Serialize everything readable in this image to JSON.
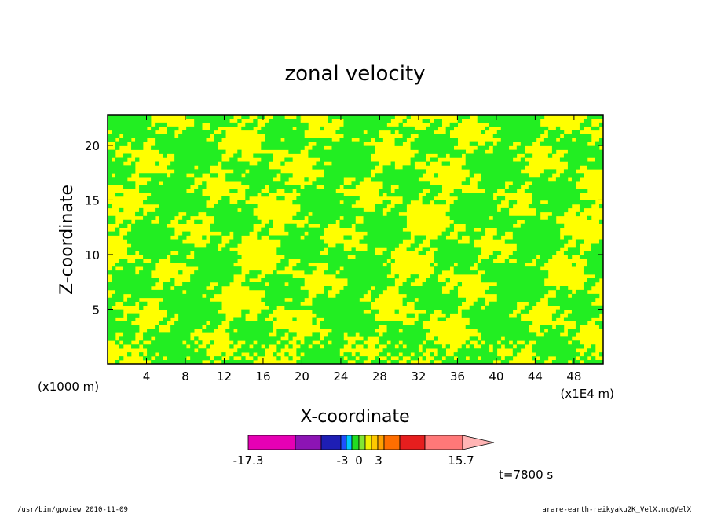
{
  "chart_data": {
    "type": "heatmap",
    "title": "zonal velocity",
    "xlabel": "X-coordinate",
    "ylabel": "Z-coordinate",
    "x_unit_left": "(x1000 m)",
    "x_unit_right": "(x1E4 m)",
    "xlim": [
      0,
      51
    ],
    "ylim": [
      0,
      22.8
    ],
    "x_ticks": [
      "4",
      "8",
      "12",
      "16",
      "20",
      "24",
      "28",
      "32",
      "36",
      "40",
      "44",
      "48"
    ],
    "x_tick_values": [
      4,
      8,
      12,
      16,
      20,
      24,
      28,
      32,
      36,
      40,
      44,
      48
    ],
    "y_ticks": [
      "5",
      "10",
      "15",
      "20"
    ],
    "y_tick_values": [
      5,
      10,
      15,
      20
    ],
    "field_colors": {
      "positive": "#ffff00",
      "negative": "#22ee22",
      "contour": "#000000"
    },
    "colorbar": {
      "segments": [
        "#e600b4",
        "#8c14b4",
        "#1e1eb4",
        "#1e50ff",
        "#00c8ff",
        "#22dd22",
        "#82e632",
        "#f0f000",
        "#ffc800",
        "#ffa000",
        "#ff6e00",
        "#e61e1e",
        "#ff7878",
        "#ffb4b4"
      ],
      "tick_labels": [
        "-17.3",
        "-3",
        "0",
        "3",
        "15.7"
      ],
      "tick_values": [
        -17.3,
        -3,
        0,
        3,
        15.7
      ]
    },
    "time_label": "t=7800 s"
  },
  "footer": {
    "left": "/usr/bin/gpview   2010-11-09",
    "right": "arare-earth-reikyaku2K_VelX.nc@VelX"
  }
}
